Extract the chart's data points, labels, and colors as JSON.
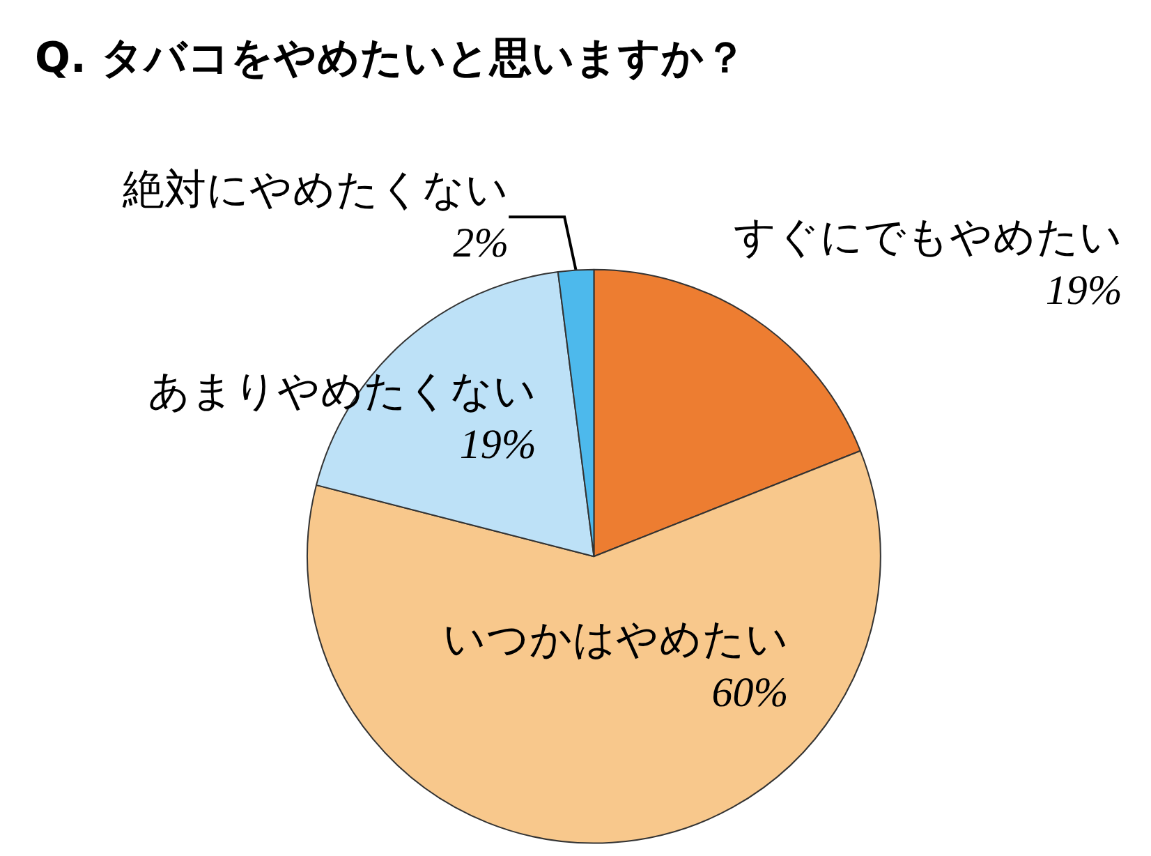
{
  "chart_data": {
    "type": "pie",
    "title": "Q. タバコをやめたいと思いますか？",
    "categories": [
      "すぐにでもやめたい",
      "いつかはやめたい",
      "あまりやめたくない",
      "絶対にやめたくない"
    ],
    "values": [
      19,
      60,
      19,
      2
    ],
    "value_labels": [
      "19%",
      "60%",
      "19%",
      "2%"
    ],
    "colors": [
      "#ed7d31",
      "#f8c88c",
      "#bde1f7",
      "#4db9ec"
    ],
    "legend": false
  }
}
